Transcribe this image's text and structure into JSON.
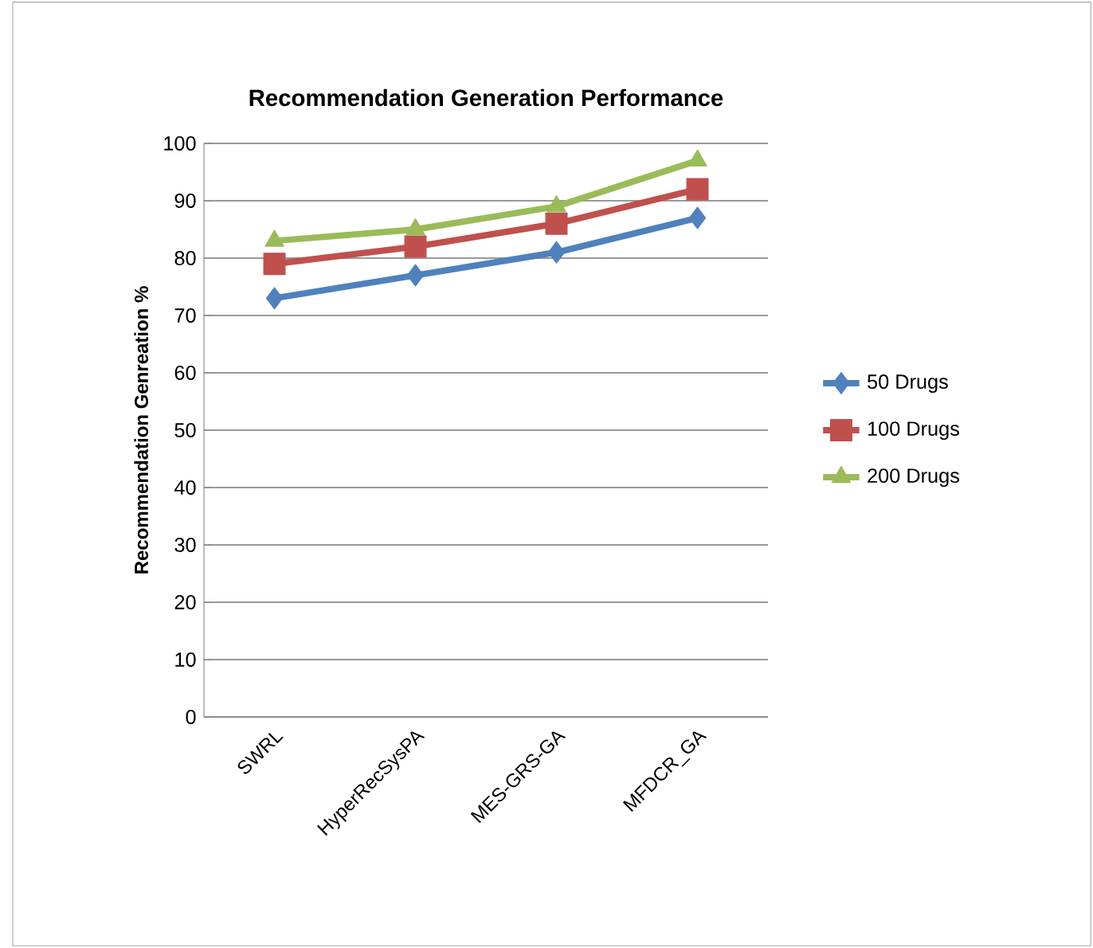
{
  "chart_data": {
    "type": "line",
    "title": "Recommendation Generation Performance",
    "ylabel": "Recommendation Genreation %",
    "categories": [
      "SWRL",
      "HyperRecSysPA",
      "MES-GRS-GA",
      "MFDCR_GA"
    ],
    "series": [
      {
        "name": "50 Drugs",
        "color": "#4f81bd",
        "marker": "diamond",
        "values": [
          73,
          77,
          81,
          87
        ]
      },
      {
        "name": "100 Drugs",
        "color": "#c0504d",
        "marker": "square",
        "values": [
          79,
          82,
          86,
          92
        ]
      },
      {
        "name": "200 Drugs",
        "color": "#9bbb59",
        "marker": "triangle",
        "values": [
          83,
          85,
          89,
          97
        ]
      }
    ],
    "ylim": [
      0,
      100
    ],
    "yticks": [
      0,
      10,
      20,
      30,
      40,
      50,
      60,
      70,
      80,
      90,
      100
    ],
    "grid": "y",
    "legend": "right"
  }
}
